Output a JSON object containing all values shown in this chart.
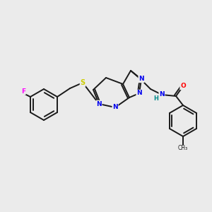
{
  "bg_color": "#ebebeb",
  "bond_color": "#1a1a1a",
  "atom_colors": {
    "N": "#0000ee",
    "O": "#ff0000",
    "S": "#cccc00",
    "F": "#ff00ff",
    "NH": "#008b8b",
    "C": "#1a1a1a"
  },
  "lw": 1.4,
  "figsize": [
    3.0,
    3.0
  ],
  "dpi": 100
}
